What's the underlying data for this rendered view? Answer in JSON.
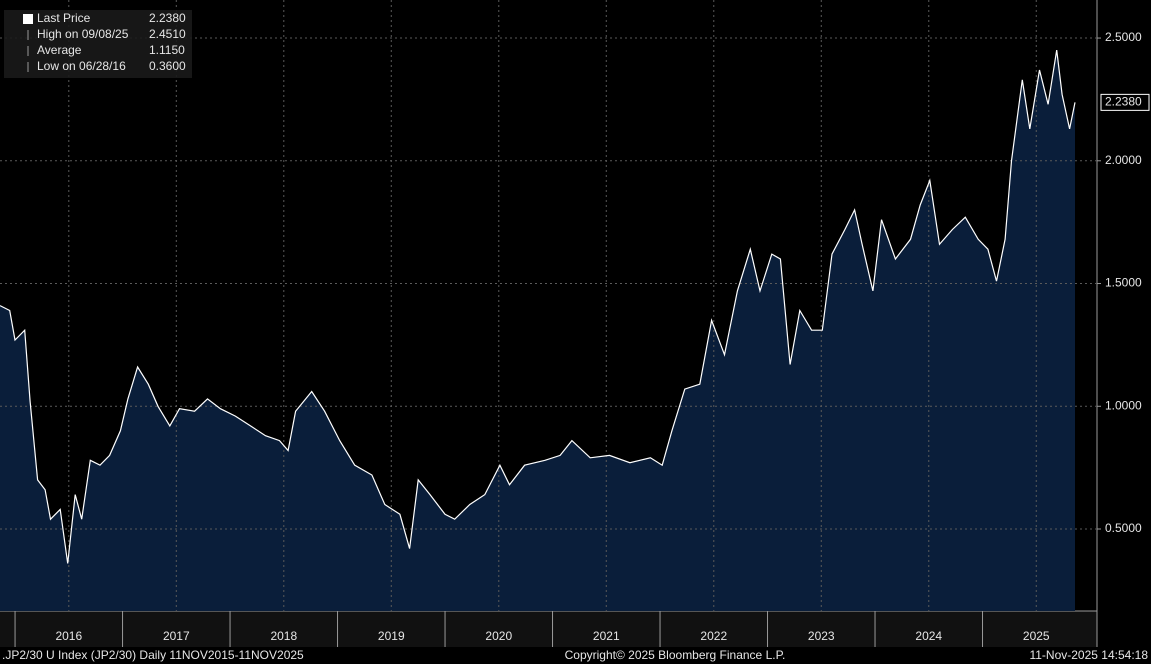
{
  "chart_data": {
    "type": "area",
    "legend": [
      {
        "label": "Last Price",
        "value": {
          "value": 2.238,
          "label": "2.2380"
        }
      },
      {
        "label": "High on 09/08/25",
        "value": {
          "value": 2.451,
          "label": "2.4510"
        }
      },
      {
        "label": "Average",
        "value": {
          "value": 1.115,
          "label": "1.1150"
        }
      },
      {
        "label": "Low on 06/28/16",
        "value": {
          "value": 0.36,
          "label": "0.3600"
        }
      }
    ],
    "footer_left": ".JP2/30 U Index (JP2/30) Daily 11NOV2015-11NOV2025",
    "footer_center": "Copyright© 2025 Bloomberg Finance L.P.",
    "footer_right": "11-Nov-2025 14:54:18",
    "series": [
      {
        "color": "#ffffff",
        "fill": "#0a1e3a",
        "x": [
          2015.86,
          2015.95,
          2016.0,
          2016.09,
          2016.14,
          2016.21,
          2016.28,
          2016.33,
          2016.42,
          2016.49,
          2016.56,
          2016.62,
          2016.7,
          2016.79,
          2016.88,
          2016.98,
          2017.05,
          2017.14,
          2017.24,
          2017.33,
          2017.44,
          2017.53,
          2017.67,
          2017.79,
          2017.91,
          2018.05,
          2018.19,
          2018.33,
          2018.46,
          2018.54,
          2018.61,
          2018.76,
          2018.88,
          2019.02,
          2019.16,
          2019.32,
          2019.44,
          2019.58,
          2019.67,
          2019.75,
          2019.86,
          2020.0,
          2020.09,
          2020.23,
          2020.37,
          2020.51,
          2020.6,
          2020.74,
          2020.93,
          2021.07,
          2021.18,
          2021.35,
          2021.53,
          2021.72,
          2021.91,
          2022.02,
          2022.11,
          2022.23,
          2022.37,
          2022.48,
          2022.6,
          2022.72,
          2022.84,
          2022.93,
          2023.04,
          2023.12,
          2023.21,
          2023.3,
          2023.41,
          2023.51,
          2023.6,
          2023.72,
          2023.81,
          2023.88,
          2023.98,
          2024.06,
          2024.19,
          2024.33,
          2024.42,
          2024.51,
          2024.6,
          2024.72,
          2024.84,
          2024.96,
          2025.05,
          2025.13,
          2025.21,
          2025.27,
          2025.37,
          2025.44,
          2025.53,
          2025.61,
          2025.69,
          2025.74,
          2025.81,
          2025.86
        ],
        "values": [
          1.41,
          1.39,
          1.27,
          1.31,
          1.02,
          0.7,
          0.66,
          0.54,
          0.58,
          0.36,
          0.64,
          0.54,
          0.78,
          0.76,
          0.8,
          0.9,
          1.03,
          1.16,
          1.09,
          1.0,
          0.92,
          0.99,
          0.98,
          1.03,
          0.99,
          0.96,
          0.92,
          0.88,
          0.86,
          0.82,
          0.98,
          1.06,
          0.98,
          0.86,
          0.76,
          0.72,
          0.6,
          0.56,
          0.42,
          0.7,
          0.64,
          0.56,
          0.54,
          0.6,
          0.64,
          0.76,
          0.68,
          0.76,
          0.78,
          0.8,
          0.86,
          0.79,
          0.8,
          0.77,
          0.79,
          0.76,
          0.9,
          1.07,
          1.09,
          1.35,
          1.21,
          1.47,
          1.64,
          1.47,
          1.62,
          1.6,
          1.17,
          1.39,
          1.31,
          1.31,
          1.62,
          1.72,
          1.8,
          1.66,
          1.47,
          1.76,
          1.6,
          1.68,
          1.82,
          1.92,
          1.66,
          1.72,
          1.77,
          1.68,
          1.64,
          1.51,
          1.68,
          2.0,
          2.33,
          2.13,
          2.37,
          2.23,
          2.451,
          2.27,
          2.13,
          2.238
        ]
      }
    ],
    "xlim": [
      2015.86,
      2026.065
    ],
    "xticks": [
      {
        "value": 2016.5,
        "label": "2016"
      },
      {
        "value": 2017.5,
        "label": "2017"
      },
      {
        "value": 2018.5,
        "label": "2018"
      },
      {
        "value": 2019.5,
        "label": "2019"
      },
      {
        "value": 2020.5,
        "label": "2020"
      },
      {
        "value": 2021.5,
        "label": "2021"
      },
      {
        "value": 2022.5,
        "label": "2022"
      },
      {
        "value": 2023.5,
        "label": "2023"
      },
      {
        "value": 2024.5,
        "label": "2024"
      },
      {
        "value": 2025.5,
        "label": "2025"
      }
    ],
    "ylim": [
      0.166,
      2.655
    ],
    "yticks": [
      {
        "value": 0.5,
        "label": "0.5000"
      },
      {
        "value": 1.0,
        "label": "1.0000"
      },
      {
        "value": 1.5,
        "label": "1.5000"
      },
      {
        "value": 2.0,
        "label": "2.0000"
      },
      {
        "value": 2.5,
        "label": "2.5000"
      }
    ],
    "grid": true
  }
}
